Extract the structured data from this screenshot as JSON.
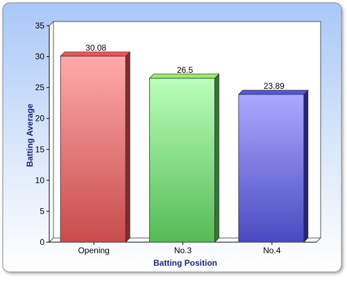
{
  "chart_data": {
    "type": "bar",
    "title": "",
    "xlabel": "Batting Position",
    "ylabel": "Batting Average",
    "categories": [
      "Opening",
      "No.3",
      "No.4"
    ],
    "values": [
      30.08,
      26.5,
      23.89
    ],
    "value_labels": [
      "30.08",
      "26.5",
      "23.89"
    ],
    "ylim": [
      0,
      35
    ],
    "yticks": [
      "0",
      "5",
      "10",
      "15",
      "20",
      "25",
      "30",
      "35"
    ],
    "grid": false,
    "legend": "none",
    "style": "3d",
    "colors": {
      "bars": [
        "#e06666",
        "#88e088",
        "#7a7ae0"
      ],
      "background_top": "#aaccff",
      "background_bottom": "#ffffff",
      "axis_label": "#1a237e"
    }
  }
}
